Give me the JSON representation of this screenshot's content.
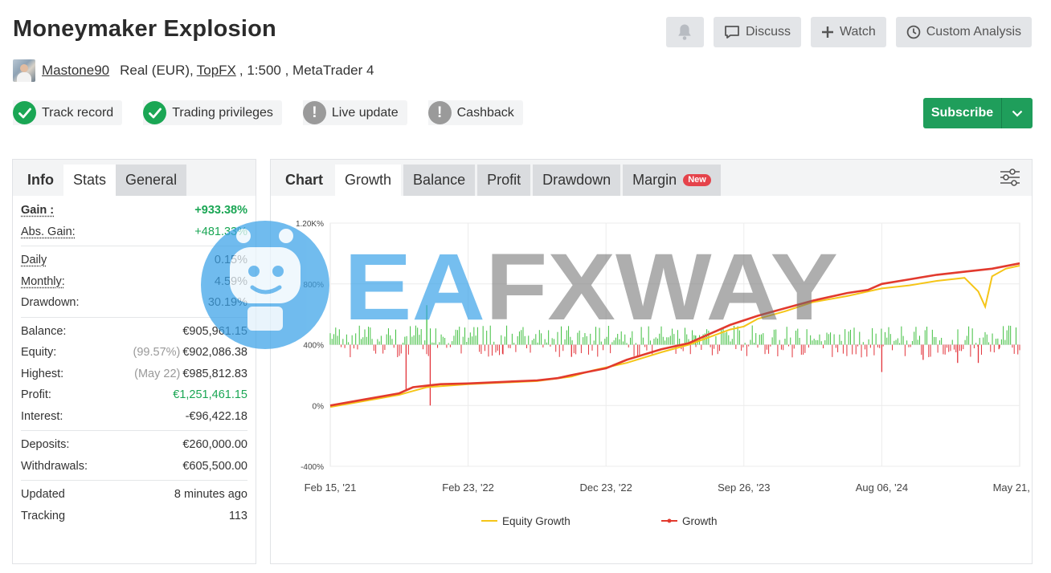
{
  "header": {
    "title": "Moneymaker Explosion",
    "actions": {
      "discuss": "Discuss",
      "watch": "Watch",
      "custom_analysis": "Custom Analysis"
    }
  },
  "account": {
    "username": "Mastone90",
    "type_prefix": "Real (EUR),",
    "broker": "TopFX",
    "details_suffix": ", 1:500 , MetaTrader 4"
  },
  "badges": [
    {
      "label": "Track record",
      "status": "ok"
    },
    {
      "label": "Trading privileges",
      "status": "ok"
    },
    {
      "label": "Live update",
      "status": "warn"
    },
    {
      "label": "Cashback",
      "status": "warn"
    }
  ],
  "subscribe_label": "Subscribe",
  "left_tabs": {
    "info": "Info",
    "stats": "Stats",
    "general": "General"
  },
  "stats": {
    "gain_label": "Gain :",
    "gain": "+933.38%",
    "abs_gain_label": "Abs. Gain:",
    "abs_gain": "+481.33%",
    "daily_label": "Daily",
    "daily": "0.15%",
    "monthly_label": "Monthly:",
    "monthly": "4.59%",
    "drawdown_label": "Drawdown:",
    "drawdown": "30.19%",
    "balance_label": "Balance:",
    "balance": "€905,961.15",
    "equity_label": "Equity:",
    "equity_pct": "(99.57%)",
    "equity": "€902,086.38",
    "highest_label": "Highest:",
    "highest_date": "(May 22)",
    "highest": "€985,812.83",
    "profit_label": "Profit:",
    "profit": "€1,251,461.15",
    "interest_label": "Interest:",
    "interest": "-€96,422.18",
    "deposits_label": "Deposits:",
    "deposits": "€260,000.00",
    "withdrawals_label": "Withdrawals:",
    "withdrawals": "€605,500.00",
    "updated_label": "Updated",
    "updated": "8 minutes ago",
    "tracking_label": "Tracking",
    "tracking": "113"
  },
  "chart_tabs": {
    "chart": "Chart",
    "growth": "Growth",
    "balance": "Balance",
    "profit": "Profit",
    "drawdown": "Drawdown",
    "margin": "Margin",
    "new_pill": "New"
  },
  "watermark": "EAFXWAY",
  "colors": {
    "equity": "#f5c518",
    "growth": "#e23a2e",
    "profit_bar": "#3fbf3f",
    "loss_bar": "#e2333a",
    "subscribe": "#1f9e5b"
  },
  "chart_data": {
    "type": "line",
    "y_ticks": [
      "-400%",
      "0%",
      "400%",
      "800%",
      "1.20K%"
    ],
    "y_values": [
      -400,
      0,
      400,
      800,
      1200
    ],
    "ylim": [
      -400,
      1200
    ],
    "x_ticks": [
      "Feb 15, '21",
      "Feb 23, '22",
      "Dec 23, '22",
      "Sep 26, '23",
      "Aug 06, '24",
      "May 21, '25"
    ],
    "x_index_range": [
      0,
      100
    ],
    "legend": [
      "Equity Growth",
      "Growth"
    ],
    "legend_position": "bottom",
    "series": [
      {
        "name": "Growth",
        "x": [
          0,
          5,
          10,
          12,
          14,
          16,
          20,
          25,
          30,
          33,
          35,
          40,
          43,
          48,
          52,
          55,
          58,
          62,
          66,
          70,
          75,
          78,
          80,
          84,
          88,
          92,
          96,
          100
        ],
        "values": [
          0,
          40,
          80,
          120,
          130,
          140,
          145,
          155,
          165,
          180,
          200,
          245,
          300,
          370,
          410,
          470,
          530,
          590,
          640,
          690,
          740,
          760,
          800,
          830,
          860,
          880,
          900,
          935
        ]
      },
      {
        "name": "Equity Growth",
        "x": [
          0,
          5,
          10,
          14,
          20,
          25,
          30,
          35,
          38,
          40,
          43,
          48,
          52,
          55,
          58,
          60,
          62,
          66,
          70,
          75,
          80,
          84,
          88,
          92,
          94,
          95,
          96,
          98,
          100
        ],
        "values": [
          -10,
          30,
          70,
          120,
          140,
          150,
          160,
          190,
          230,
          250,
          280,
          350,
          400,
          450,
          500,
          520,
          570,
          620,
          680,
          720,
          770,
          790,
          820,
          840,
          750,
          650,
          850,
          900,
          920
        ]
      }
    ],
    "bars": {
      "x": [
        11,
        14,
        14.5,
        25,
        35,
        53,
        80,
        86,
        91,
        94,
        97
      ],
      "values": [
        -300,
        260,
        -400,
        -60,
        -80,
        60,
        -180,
        -100,
        -120,
        -120,
        -30
      ]
    }
  }
}
